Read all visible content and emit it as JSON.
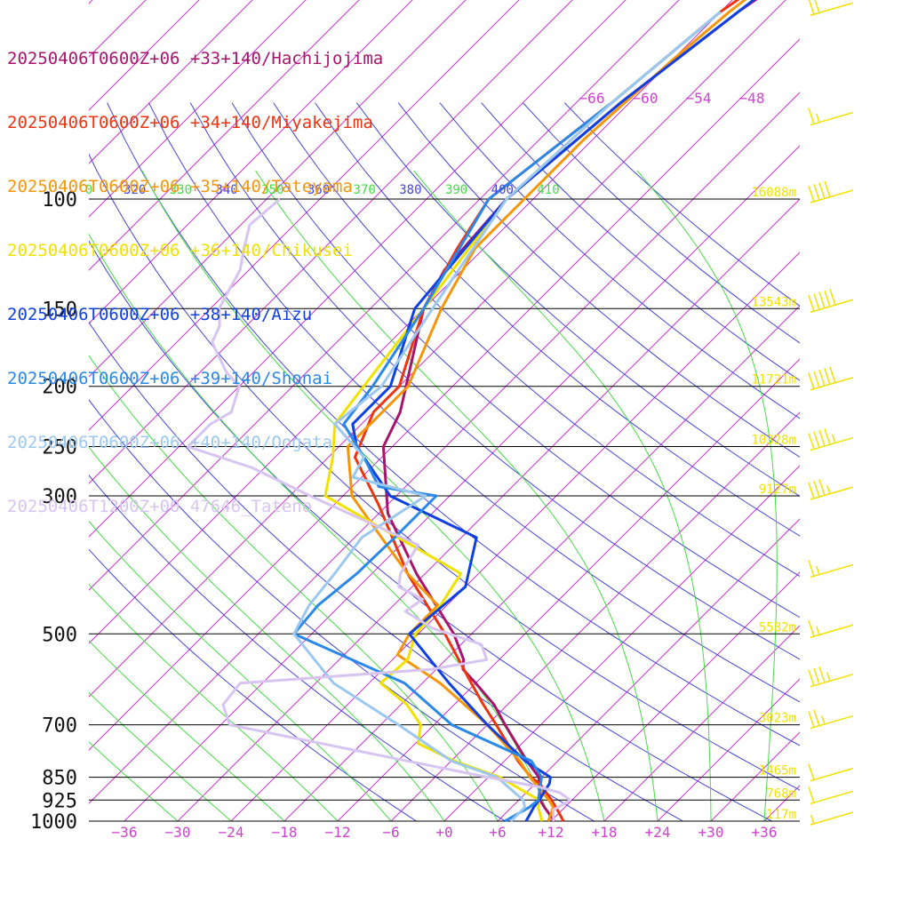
{
  "legend": [
    {
      "label": "20250406T0600Z+06 +33+140/Hachijojima",
      "color": "#a8146c"
    },
    {
      "label": "20250406T0600Z+06 +34+140/Miyakejima",
      "color": "#ee3311"
    },
    {
      "label": "20250406T0600Z+06 +35+140/Tateyama",
      "color": "#f5960a"
    },
    {
      "label": "20250406T0600Z+06 +36+140/Chikusei",
      "color": "#f0e200"
    },
    {
      "label": "20250406T0600Z+06 +38+140/Aizu",
      "color": "#1040e0"
    },
    {
      "label": "20250406T0600Z+06 +39+140/Shonai",
      "color": "#2a88e8"
    },
    {
      "label": "20250406T0600Z+06 +40+140/Oogata",
      "color": "#9cc8f0"
    },
    {
      "label": "20250406T1200Z+00 47646_Tateno",
      "color": "#d8c4f0"
    }
  ],
  "chart_data": {
    "type": "line",
    "chart_kind": "skew-T log-p aerological diagram",
    "pressure_levels": [
      {
        "p": 100,
        "label": "100",
        "height_label": "16088m"
      },
      {
        "p": 150,
        "label": "150",
        "height_label": "13543m"
      },
      {
        "p": 200,
        "label": "200",
        "height_label": "11721m"
      },
      {
        "p": 250,
        "label": "250",
        "height_label": "10328m"
      },
      {
        "p": 300,
        "label": "300",
        "height_label": "9127m"
      },
      {
        "p": 500,
        "label": "500",
        "height_label": "5582m"
      },
      {
        "p": 700,
        "label": "700",
        "height_label": "3023m"
      },
      {
        "p": 850,
        "label": "850",
        "height_label": "1465m"
      },
      {
        "p": 925,
        "label": "925",
        "height_label": "768m"
      },
      {
        "p": 1000,
        "label": "1000",
        "height_label": "117m"
      }
    ],
    "temperature_ticks": [
      {
        "t": -36,
        "label": "−36"
      },
      {
        "t": -30,
        "label": "−30"
      },
      {
        "t": -24,
        "label": "−24"
      },
      {
        "t": -18,
        "label": "−18"
      },
      {
        "t": -12,
        "label": "−12"
      },
      {
        "t": -6,
        "label": "−6"
      },
      {
        "t": 0,
        "label": "+0"
      },
      {
        "t": 6,
        "label": "+6"
      },
      {
        "t": 12,
        "label": "+12"
      },
      {
        "t": 18,
        "label": "+18"
      },
      {
        "t": 24,
        "label": "+24"
      },
      {
        "t": 30,
        "label": "+30"
      },
      {
        "t": 36,
        "label": "+36"
      }
    ],
    "upper_temperature_labels": [
      "−66",
      "−60",
      "−54",
      "−48"
    ],
    "theta_labels": [
      {
        "label": "0",
        "color": "#44dd44"
      },
      {
        "label": "320",
        "color": "#4444dd"
      },
      {
        "label": "330",
        "color": "#44dd44"
      },
      {
        "label": "340",
        "color": "#4444dd"
      },
      {
        "label": "350",
        "color": "#44dd44"
      },
      {
        "label": "360",
        "color": "#4444dd"
      },
      {
        "label": "370",
        "color": "#44dd44"
      },
      {
        "label": "380",
        "color": "#4444dd"
      },
      {
        "label": "390",
        "color": "#44dd44"
      },
      {
        "label": "400",
        "color": "#4444dd"
      },
      {
        "label": "410",
        "color": "#44dd44"
      }
    ],
    "axes": {
      "temperature_range_c": [
        -40,
        40
      ],
      "pressure_range_hpa": [
        100,
        1000
      ],
      "pressure_scale": "log",
      "skew": "45 degrees"
    },
    "colors": {
      "isotherm": "#cc33cc",
      "dry_adiabat": "#4444dd",
      "moist_adiabat": "#44dd44",
      "isobar": "#000000",
      "tick_text": "#cc44cc",
      "height_text": "#f0e200",
      "wind_barb": "#f0e200"
    },
    "series": [
      {
        "name": "20250406T0600Z+06 +33+140/Hachijojima",
        "color": "#a8146c",
        "width": 3,
        "points": [
          [
            1000,
            12.4
          ],
          [
            950,
            9.7
          ],
          [
            925,
            8.4
          ],
          [
            850,
            5.7
          ],
          [
            800,
            2.5
          ],
          [
            700,
            -4
          ],
          [
            650,
            -7.5
          ],
          [
            600,
            -12
          ],
          [
            570,
            -15
          ],
          [
            550,
            -16
          ],
          [
            500,
            -20
          ],
          [
            400,
            -31
          ],
          [
            320,
            -41
          ],
          [
            250,
            -49
          ],
          [
            220,
            -51
          ],
          [
            150,
            -60
          ],
          [
            130,
            -62
          ],
          [
            100,
            -63
          ],
          [
            70,
            -61
          ],
          [
            50,
            -58
          ],
          [
            40,
            -55
          ]
        ]
      },
      {
        "name": "20250406T0600Z+06 +34+140/Miyakejima",
        "color": "#ee3311",
        "width": 3,
        "points": [
          [
            1000,
            13.4
          ],
          [
            960,
            11.5
          ],
          [
            925,
            9.7
          ],
          [
            870,
            6.5
          ],
          [
            850,
            4.8
          ],
          [
            800,
            1.5
          ],
          [
            700,
            -5
          ],
          [
            650,
            -8.7
          ],
          [
            600,
            -12.5
          ],
          [
            500,
            -21
          ],
          [
            400,
            -32
          ],
          [
            310,
            -43
          ],
          [
            260,
            -51
          ],
          [
            220,
            -54
          ],
          [
            200,
            -54
          ],
          [
            150,
            -60
          ],
          [
            120,
            -63
          ],
          [
            100,
            -65
          ],
          [
            70,
            -62
          ],
          [
            50,
            -60
          ],
          [
            40,
            -57
          ]
        ]
      },
      {
        "name": "20250406T0600Z+06 +35+140/Tateyama",
        "color": "#f5960a",
        "width": 3,
        "points": [
          [
            1000,
            11.7
          ],
          [
            950,
            10.7
          ],
          [
            925,
            9.4
          ],
          [
            850,
            4.7
          ],
          [
            800,
            1.7
          ],
          [
            700,
            -6
          ],
          [
            600,
            -16
          ],
          [
            540,
            -24
          ],
          [
            500,
            -25
          ],
          [
            450,
            -25
          ],
          [
            400,
            -32
          ],
          [
            350,
            -39
          ],
          [
            300,
            -47
          ],
          [
            250,
            -53
          ],
          [
            200,
            -53
          ],
          [
            150,
            -58
          ],
          [
            120,
            -61
          ],
          [
            100,
            -61
          ],
          [
            80,
            -61
          ],
          [
            60,
            -60
          ],
          [
            50,
            -59
          ],
          [
            40,
            -57
          ]
        ]
      },
      {
        "name": "20250406T0600Z+06 +36+140/Chikusei",
        "color": "#f0e200",
        "width": 3,
        "points": [
          [
            1000,
            11
          ],
          [
            950,
            9
          ],
          [
            925,
            8.3
          ],
          [
            850,
            1.3
          ],
          [
            800,
            -5.7
          ],
          [
            750,
            -11.7
          ],
          [
            700,
            -13.5
          ],
          [
            650,
            -17.3
          ],
          [
            600,
            -22.7
          ],
          [
            550,
            -22.3
          ],
          [
            500,
            -24.3
          ],
          [
            450,
            -24.7
          ],
          [
            400,
            -26
          ],
          [
            300,
            -50
          ],
          [
            260,
            -53.5
          ],
          [
            230,
            -57
          ],
          [
            200,
            -58
          ],
          [
            150,
            -60
          ],
          [
            100,
            -63
          ],
          [
            70,
            -62
          ],
          [
            50,
            -60
          ]
        ]
      },
      {
        "name": "20250406T0600Z+06 +38+140/Aizu",
        "color": "#1040e0",
        "width": 3,
        "points": [
          [
            1000,
            9.2
          ],
          [
            950,
            8.5
          ],
          [
            925,
            8.3
          ],
          [
            870,
            7.6
          ],
          [
            850,
            7
          ],
          [
            800,
            2.3
          ],
          [
            700,
            -6
          ],
          [
            600,
            -15
          ],
          [
            500,
            -25
          ],
          [
            420,
            -24
          ],
          [
            350,
            -28.3
          ],
          [
            300,
            -42.7
          ],
          [
            250,
            -52
          ],
          [
            230,
            -55
          ],
          [
            200,
            -55
          ],
          [
            150,
            -61
          ],
          [
            100,
            -63
          ],
          [
            70,
            -61
          ],
          [
            50,
            -58
          ],
          [
            40,
            -56
          ]
        ]
      },
      {
        "name": "20250406T0600Z+06 +39+140/Shonai",
        "color": "#2a88e8",
        "width": 3,
        "points": [
          [
            1000,
            6.8
          ],
          [
            950,
            8
          ],
          [
            925,
            8.2
          ],
          [
            850,
            6
          ],
          [
            800,
            3
          ],
          [
            700,
            -10
          ],
          [
            600,
            -20
          ],
          [
            500,
            -38
          ],
          [
            450,
            -38.5
          ],
          [
            400,
            -37.7
          ],
          [
            350,
            -37.5
          ],
          [
            300,
            -37.5
          ],
          [
            290,
            -45
          ],
          [
            260,
            -50
          ],
          [
            230,
            -56
          ],
          [
            200,
            -57
          ],
          [
            150,
            -60
          ],
          [
            100,
            -65
          ],
          [
            70,
            -62
          ],
          [
            50,
            -60
          ]
        ]
      },
      {
        "name": "20250406T0600Z+06 +40+140/Oogata",
        "color": "#9cc8f0",
        "width": 3,
        "points": [
          [
            1000,
            7.5
          ],
          [
            950,
            7.5
          ],
          [
            925,
            6.5
          ],
          [
            850,
            1
          ],
          [
            800,
            -6
          ],
          [
            700,
            -16
          ],
          [
            600,
            -28
          ],
          [
            500,
            -38
          ],
          [
            450,
            -39.5
          ],
          [
            400,
            -40.2
          ],
          [
            350,
            -41.2
          ],
          [
            300,
            -38.7
          ],
          [
            280,
            -49
          ],
          [
            260,
            -50
          ],
          [
            230,
            -57
          ],
          [
            200,
            -56
          ],
          [
            150,
            -59
          ],
          [
            100,
            -63
          ],
          [
            70,
            -62
          ],
          [
            50,
            -60
          ]
        ]
      },
      {
        "name": "20250406T1200Z+00 47646_Tateno",
        "color": "#d8c4f0",
        "width": 3,
        "points": [
          [
            1000,
            12.3
          ],
          [
            960,
            11
          ],
          [
            925,
            11.8
          ],
          [
            900,
            9.8
          ],
          [
            880,
            6.6
          ],
          [
            850,
            0
          ],
          [
            800,
            -11
          ],
          [
            700,
            -35
          ],
          [
            650,
            -38
          ],
          [
            600,
            -38.5
          ],
          [
            570,
            -18.5
          ],
          [
            550,
            -13.4
          ],
          [
            520,
            -15.7
          ],
          [
            490,
            -23
          ],
          [
            460,
            -28
          ],
          [
            440,
            -27.4
          ],
          [
            420,
            -31.5
          ],
          [
            400,
            -32.8
          ],
          [
            360,
            -34
          ],
          [
            350,
            -36.7
          ],
          [
            300,
            -51.7
          ],
          [
            270,
            -61.5
          ],
          [
            250,
            -71
          ],
          [
            230,
            -71
          ],
          [
            220,
            -70
          ],
          [
            200,
            -72
          ],
          [
            190,
            -75
          ],
          [
            170,
            -80
          ],
          [
            160,
            -81
          ],
          [
            150,
            -83
          ],
          [
            140,
            -84
          ],
          [
            130,
            -85
          ],
          [
            120,
            -87
          ],
          [
            110,
            -89
          ],
          [
            100,
            -88.5
          ]
        ]
      }
    ],
    "wind_barbs_kt": [
      {
        "p": 50,
        "speed": 20
      },
      {
        "p": 75,
        "speed": 15
      },
      {
        "p": 100,
        "speed": 40
      },
      {
        "p": 150,
        "speed": 50
      },
      {
        "p": 200,
        "speed": 50
      },
      {
        "p": 250,
        "speed": 45
      },
      {
        "p": 300,
        "speed": 35
      },
      {
        "p": 400,
        "speed": 15
      },
      {
        "p": 500,
        "speed": 15
      },
      {
        "p": 600,
        "speed": 35
      },
      {
        "p": 700,
        "speed": 25
      },
      {
        "p": 850,
        "speed": 10
      },
      {
        "p": 925,
        "speed": 10
      },
      {
        "p": 1000,
        "speed": 5
      }
    ]
  }
}
